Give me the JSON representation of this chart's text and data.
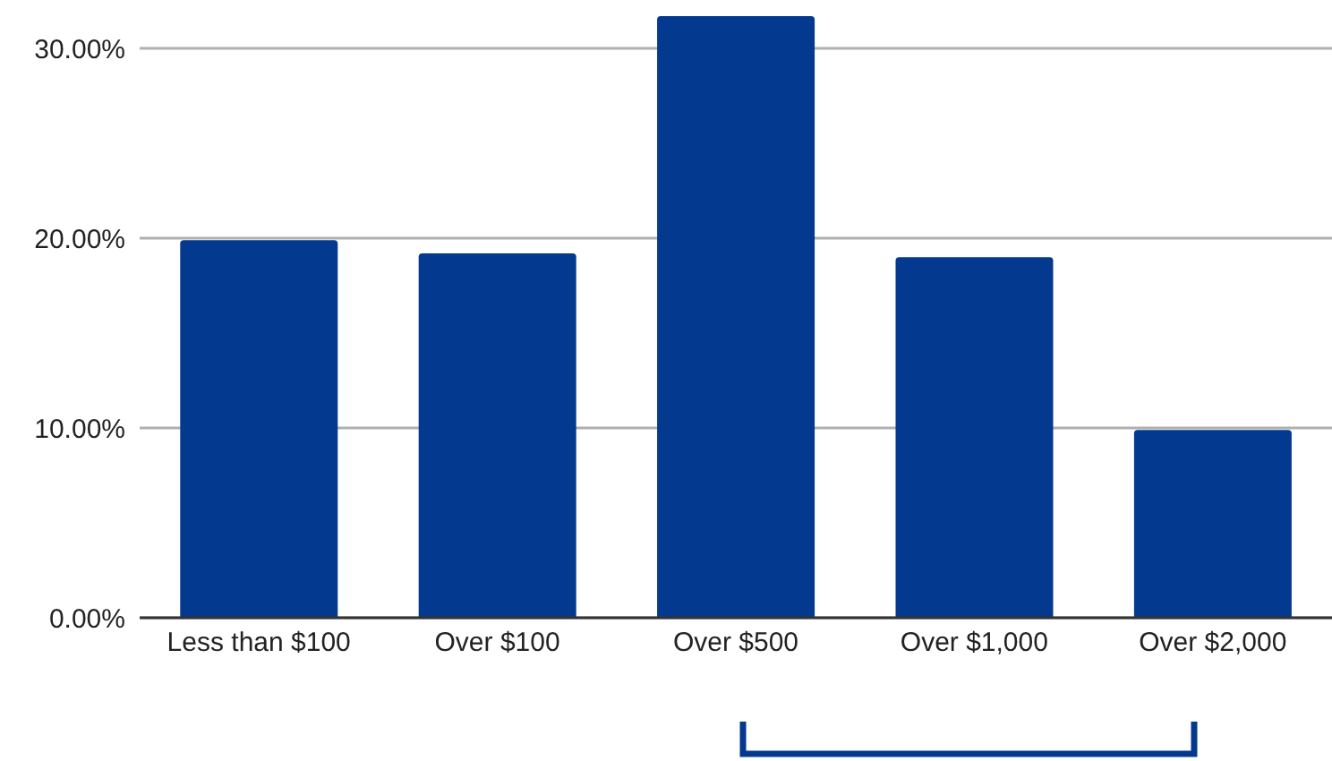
{
  "chart_data": {
    "type": "bar",
    "categories": [
      "Less than $100",
      "Over $100",
      "Over $500",
      "Over $1,000",
      "Over $2,000"
    ],
    "values": [
      19.9,
      19.2,
      31.7,
      19.0,
      9.9
    ],
    "color": "#03398e",
    "ylim": [
      0,
      31.7
    ],
    "yticks": [
      {
        "value": 0,
        "label": "0.00%"
      },
      {
        "value": 10,
        "label": "10.00%"
      },
      {
        "value": 20,
        "label": "20.00%"
      },
      {
        "value": 30,
        "label": "30.00%"
      }
    ],
    "grid": "y"
  }
}
